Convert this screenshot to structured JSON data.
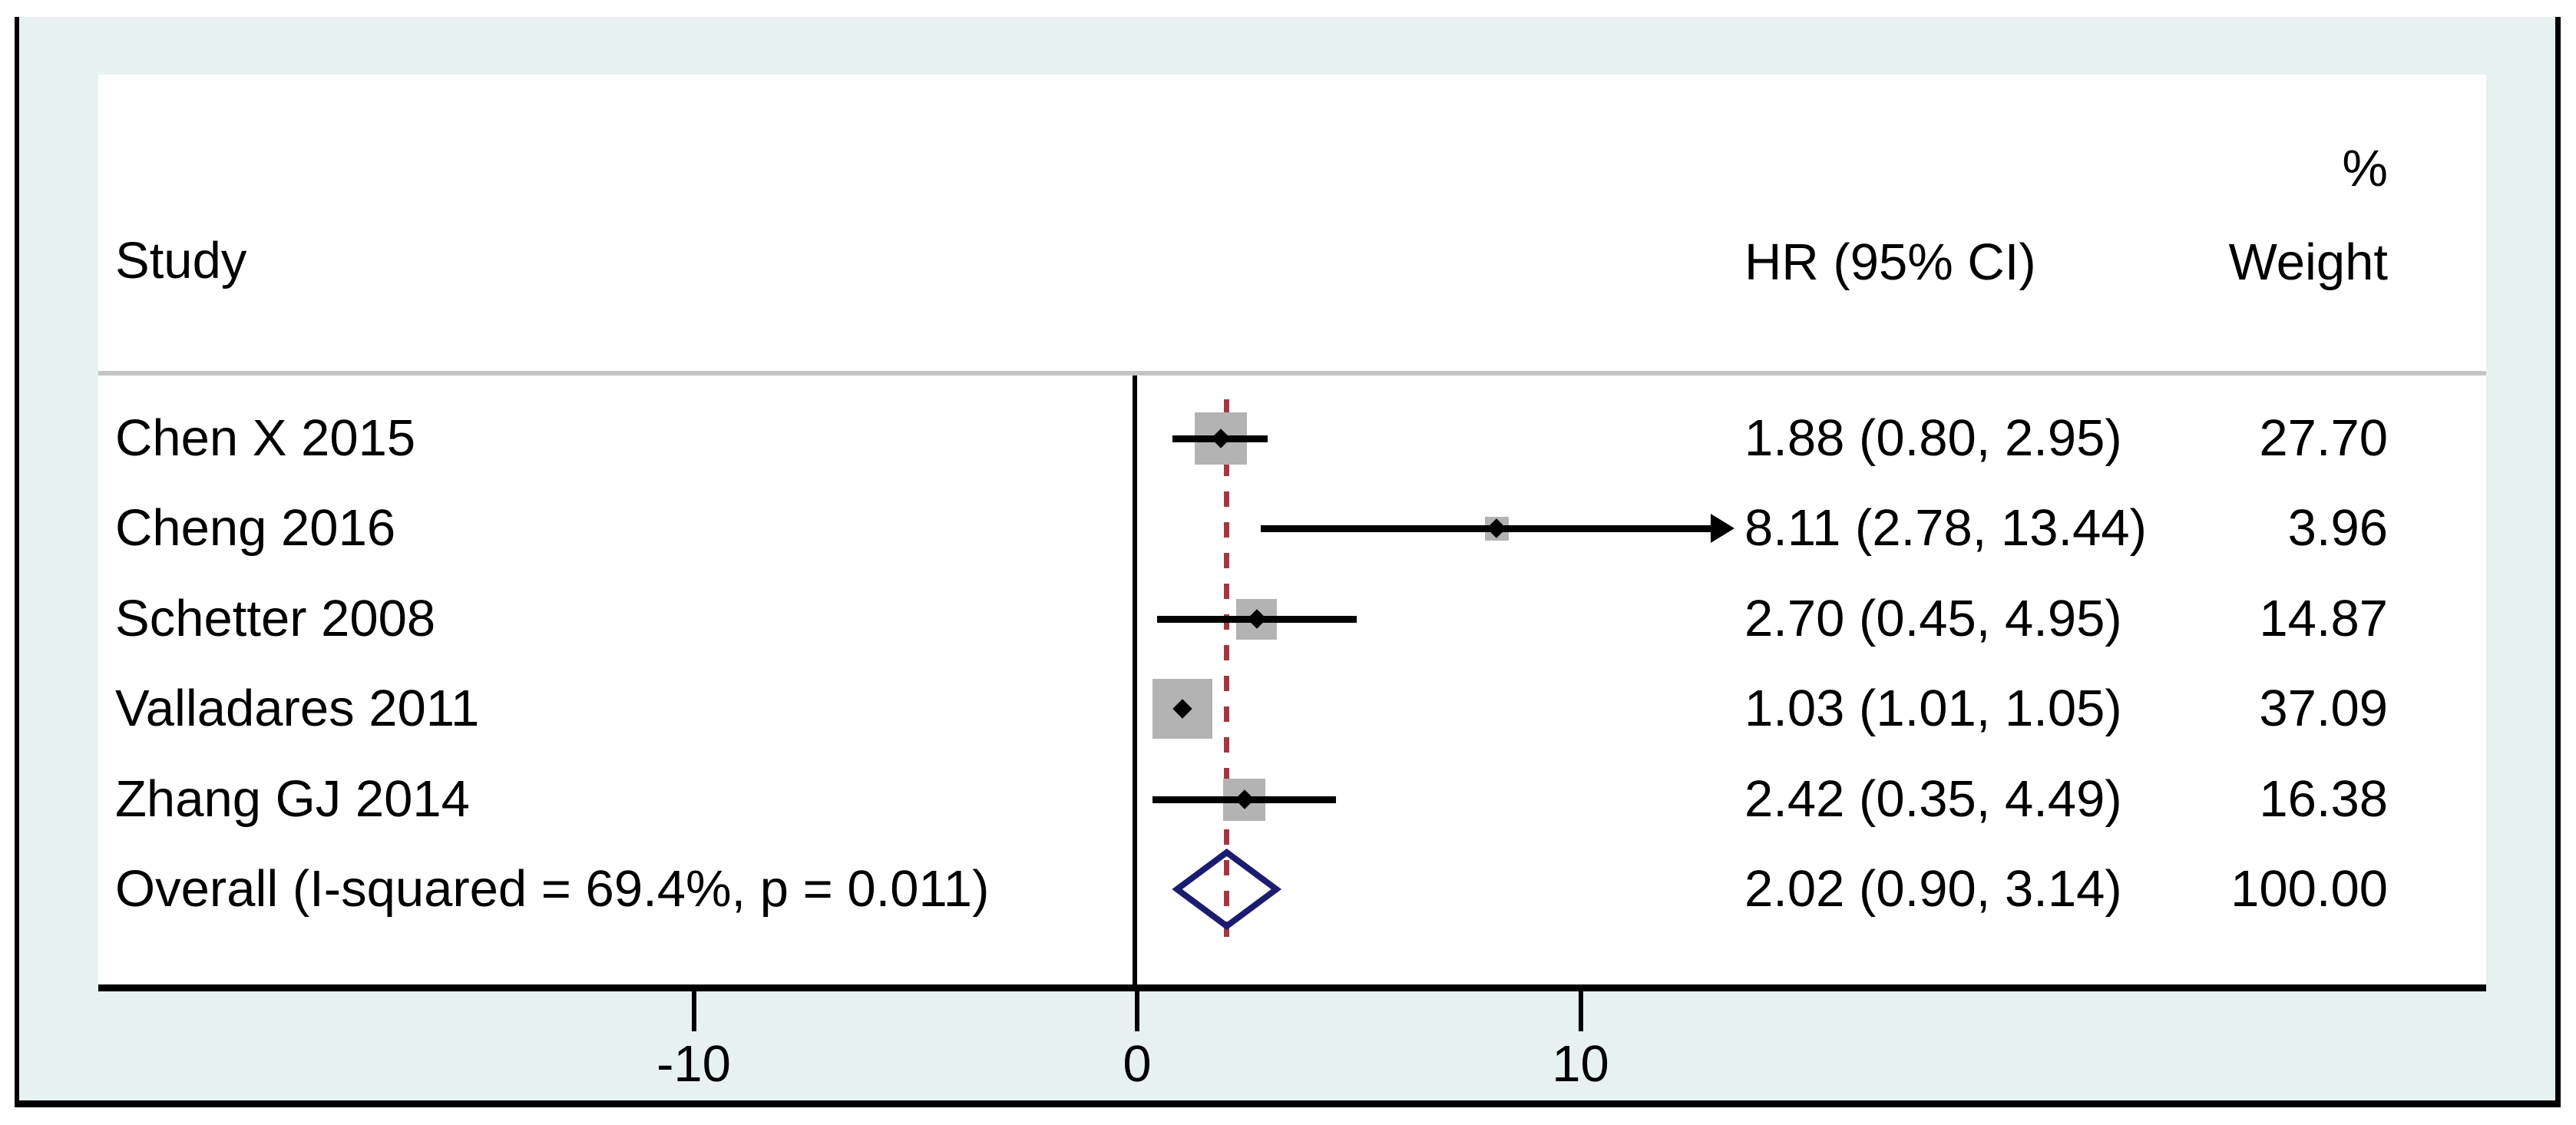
{
  "header": {
    "study_col": "Study",
    "percent": "%",
    "hr_col": "HR (95% CI)",
    "weight_col": "Weight"
  },
  "chart_data": {
    "type": "scatter",
    "subtype": "forest-plot",
    "title": "",
    "xlabel": "",
    "x_axis": {
      "ticks": [
        -10,
        0,
        10
      ],
      "tick_labels": [
        "-10",
        "0",
        "10"
      ],
      "null_line_at": 0,
      "reference_line_at": 2.02,
      "grid": false
    },
    "studies": [
      {
        "name": "Chen X 2015",
        "hr": 1.88,
        "ci_low": 0.8,
        "ci_high": 2.95,
        "hr_text": "1.88 (0.80, 2.95)",
        "weight": 27.7,
        "weight_text": "27.70",
        "ci_arrow": false
      },
      {
        "name": "Cheng 2016",
        "hr": 8.11,
        "ci_low": 2.78,
        "ci_high": 13.44,
        "hr_text": "8.11 (2.78, 13.44)",
        "weight": 3.96,
        "weight_text": "3.96",
        "ci_arrow": true
      },
      {
        "name": "Schetter 2008",
        "hr": 2.7,
        "ci_low": 0.45,
        "ci_high": 4.95,
        "hr_text": "2.70 (0.45, 4.95)",
        "weight": 14.87,
        "weight_text": "14.87",
        "ci_arrow": false
      },
      {
        "name": "Valladares 2011",
        "hr": 1.03,
        "ci_low": 1.01,
        "ci_high": 1.05,
        "hr_text": "1.03 (1.01, 1.05)",
        "weight": 37.09,
        "weight_text": "37.09",
        "ci_arrow": false
      },
      {
        "name": "Zhang GJ 2014",
        "hr": 2.42,
        "ci_low": 0.35,
        "ci_high": 4.49,
        "hr_text": "2.42 (0.35, 4.49)",
        "weight": 16.38,
        "weight_text": "16.38",
        "ci_arrow": false
      }
    ],
    "overall": {
      "label": "Overall (I-squared = 69.4%, p = 0.011)",
      "hr": 2.02,
      "ci_low": 0.9,
      "ci_high": 3.14,
      "hr_text": "2.02 (0.90, 3.14)",
      "weight_text": "100.00"
    }
  },
  "colors": {
    "frame_background": "#e6f1f0",
    "panel_background": "#ffffff",
    "border": "#000000",
    "weight_square": "#b3b3b3",
    "separator": "#c5c5c5",
    "reference_line": "#a8343f",
    "diamond_outline": "#1b1b70",
    "text": "#000000"
  }
}
